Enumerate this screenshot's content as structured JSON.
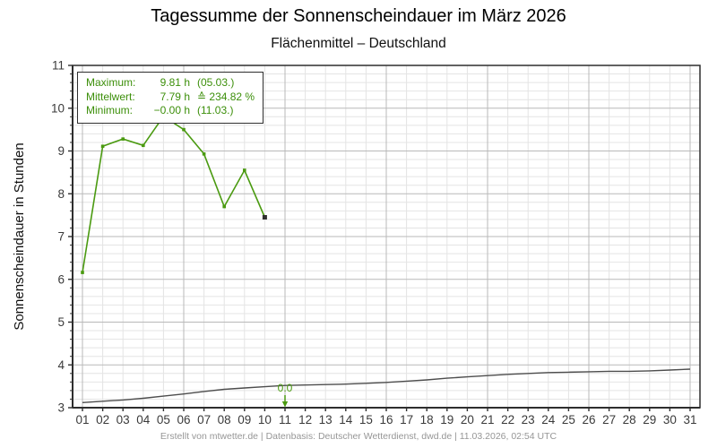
{
  "title": "Tagessumme der Sonnenscheindauer im März 2026",
  "subtitle": "Flächenmittel – Deutschland",
  "footer": "Erstellt von mtwetter.de | Datenbasis: Deutscher Wetterdienst, dwd.de | 11.03.2026, 02:54 UTC",
  "info_box": {
    "rows": [
      {
        "label": "Maximum:",
        "value": "9.81 h",
        "extra": "(05.03.)"
      },
      {
        "label": "Mittelwert:",
        "value": "7.79 h",
        "extra": "≙ 234.82 %"
      },
      {
        "label": "Minimum:",
        "value": "−0.00 h",
        "extra": "(11.03.)"
      }
    ]
  },
  "colors": {
    "series_green": "#4a9a10",
    "reference_gray": "#4d4d4d",
    "last_marker": "#2f2f2f",
    "grid_minor": "#e4e4e4",
    "grid_major": "#b9b9b9",
    "axis": "#2e2e2e",
    "tick_label": "#3a3a3a",
    "info_text": "#3c8f0a",
    "footer_text": "#969696"
  },
  "chart_data": {
    "type": "line",
    "title": "Tagessumme der Sonnenscheindauer im März 2026",
    "subtitle": "Flächenmittel – Deutschland",
    "xlabel": "",
    "ylabel": "Sonnenscheindauer in Stunden",
    "ylim": [
      3,
      11
    ],
    "xlim_days": [
      1,
      31
    ],
    "grid": {
      "minor_y_step": 0.2,
      "major_y_step": 1,
      "minor_x_step_days": 1,
      "major_x_step_days": 5,
      "grid_on": true
    },
    "y_ticks": [
      "3",
      "4",
      "5",
      "6",
      "7",
      "8",
      "9",
      "10",
      "11"
    ],
    "x_ticks": [
      "01",
      "02",
      "03",
      "04",
      "05",
      "06",
      "07",
      "08",
      "09",
      "10",
      "11",
      "12",
      "13",
      "14",
      "15",
      "16",
      "17",
      "18",
      "19",
      "20",
      "21",
      "22",
      "23",
      "24",
      "25",
      "26",
      "27",
      "28",
      "29",
      "30",
      "31"
    ],
    "series": [
      {
        "id": "daily-sunshine-march-2026",
        "color": "#4a9a10",
        "marker": "square",
        "x": [
          1,
          2,
          3,
          4,
          5,
          6,
          7,
          8,
          9,
          10
        ],
        "values": [
          6.16,
          9.11,
          9.28,
          9.13,
          9.81,
          9.5,
          8.93,
          7.7,
          8.55,
          7.45
        ],
        "last_point_marker_color": "#2f2f2f"
      },
      {
        "id": "reference-mean-line",
        "color": "#4d4d4d",
        "marker": "none",
        "x": [
          1,
          2,
          3,
          4,
          5,
          6,
          7,
          8,
          9,
          10,
          11,
          12,
          13,
          14,
          15,
          16,
          17,
          18,
          19,
          20,
          21,
          22,
          23,
          24,
          25,
          26,
          27,
          28,
          29,
          30,
          31
        ],
        "values": [
          3.12,
          3.15,
          3.18,
          3.22,
          3.27,
          3.32,
          3.38,
          3.43,
          3.46,
          3.49,
          3.52,
          3.53,
          3.54,
          3.55,
          3.57,
          3.59,
          3.62,
          3.65,
          3.69,
          3.72,
          3.75,
          3.78,
          3.8,
          3.82,
          3.83,
          3.84,
          3.85,
          3.85,
          3.86,
          3.88,
          3.9
        ]
      }
    ],
    "annotations": [
      {
        "x_day": 11,
        "text": "0.0",
        "arrow": "down",
        "color": "#4a9a10"
      }
    ],
    "stats": {
      "maximum_h": 9.81,
      "maximum_date": "05.03.",
      "mean_h": 7.79,
      "mean_percent": 234.82,
      "minimum_h": -0.0,
      "minimum_date": "11.03."
    }
  }
}
